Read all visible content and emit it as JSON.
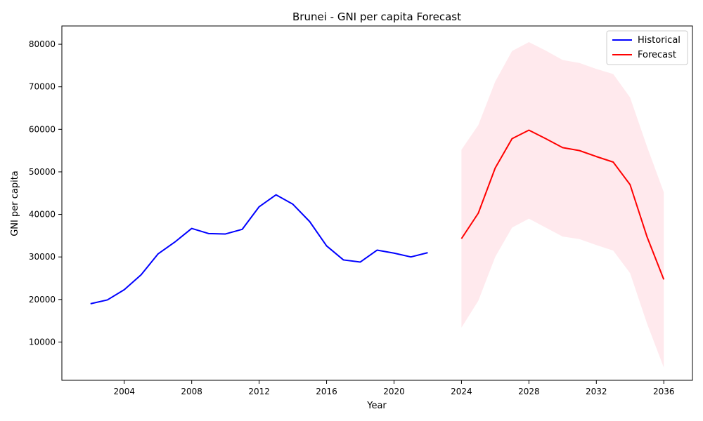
{
  "chart_data": {
    "type": "line",
    "title": "Brunei - GNI per capita Forecast",
    "xlabel": "Year",
    "ylabel": "GNI per capita",
    "xlim": [
      2000.3,
      2037.7
    ],
    "ylim": [
      1000,
      84300
    ],
    "x_ticks": [
      2004,
      2008,
      2012,
      2016,
      2020,
      2024,
      2028,
      2032,
      2036
    ],
    "y_ticks": [
      10000,
      20000,
      30000,
      40000,
      50000,
      60000,
      70000,
      80000
    ],
    "grid": false,
    "legend_position": "top-right",
    "series": [
      {
        "name": "Historical",
        "color": "#0000ff",
        "x": [
          2002,
          2003,
          2004,
          2005,
          2006,
          2007,
          2008,
          2009,
          2010,
          2011,
          2012,
          2013,
          2014,
          2015,
          2016,
          2017,
          2018,
          2019,
          2020,
          2021,
          2022
        ],
        "values": [
          19000,
          19900,
          22300,
          25800,
          30700,
          33500,
          36700,
          35500,
          35400,
          36500,
          41800,
          44600,
          42400,
          38300,
          32600,
          29300,
          28800,
          31600,
          30900,
          30000,
          31000
        ]
      },
      {
        "name": "Forecast",
        "color": "#ff0000",
        "x": [
          2024,
          2025,
          2026,
          2027,
          2028,
          2029,
          2030,
          2031,
          2032,
          2033,
          2034,
          2035,
          2036
        ],
        "values": [
          34300,
          40300,
          50900,
          57800,
          59800,
          57800,
          55700,
          55000,
          53600,
          52300,
          47000,
          34800,
          24700
        ]
      }
    ],
    "confidence_band": {
      "color": "#ffc0cb",
      "opacity": 0.35,
      "x": [
        2024,
        2025,
        2026,
        2027,
        2028,
        2029,
        2030,
        2031,
        2032,
        2033,
        2034,
        2035,
        2036
      ],
      "upper": [
        55200,
        61000,
        71200,
        78400,
        80500,
        78500,
        76300,
        75600,
        74200,
        73000,
        67500,
        56000,
        45200
      ],
      "lower": [
        13400,
        19700,
        30000,
        36900,
        39000,
        36900,
        34800,
        34200,
        32800,
        31500,
        26200,
        14400,
        4000
      ]
    }
  }
}
